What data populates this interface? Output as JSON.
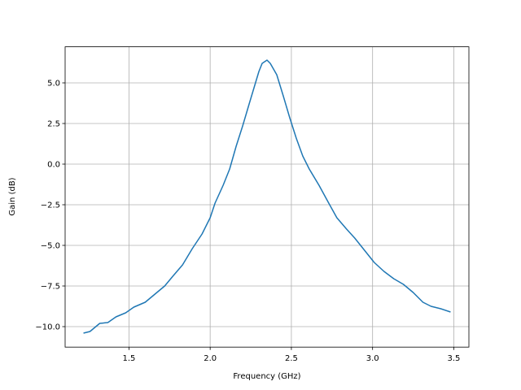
{
  "chart_data": {
    "type": "line",
    "xlabel": "Frequency (GHz)",
    "ylabel": "Gain (dB)",
    "x": [
      1.22,
      1.26,
      1.32,
      1.37,
      1.42,
      1.48,
      1.53,
      1.6,
      1.66,
      1.72,
      1.77,
      1.83,
      1.89,
      1.95,
      2.0,
      2.03,
      2.08,
      2.12,
      2.16,
      2.2,
      2.24,
      2.27,
      2.3,
      2.32,
      2.35,
      2.37,
      2.41,
      2.45,
      2.49,
      2.53,
      2.57,
      2.61,
      2.67,
      2.73,
      2.78,
      2.84,
      2.89,
      2.95,
      3.01,
      3.07,
      3.13,
      3.19,
      3.25,
      3.31,
      3.36,
      3.42,
      3.48
    ],
    "series": [
      {
        "color": "#1f77b4",
        "values": [
          -10.4,
          -10.3,
          -9.8,
          -9.75,
          -9.4,
          -9.15,
          -8.8,
          -8.5,
          -8.0,
          -7.5,
          -6.9,
          -6.2,
          -5.2,
          -4.3,
          -3.3,
          -2.4,
          -1.3,
          -0.3,
          1.1,
          2.35,
          3.7,
          4.7,
          5.7,
          6.2,
          6.4,
          6.2,
          5.5,
          4.2,
          2.85,
          1.6,
          0.5,
          -0.3,
          -1.3,
          -2.4,
          -3.3,
          -4.0,
          -4.55,
          -5.3,
          -6.05,
          -6.6,
          -7.05,
          -7.4,
          -7.9,
          -8.5,
          -8.75,
          -8.9,
          -9.1
        ]
      }
    ],
    "xlim": [
      1.107,
      3.593
    ],
    "ylim": [
      -11.26,
      7.22
    ],
    "xticks": [
      1.5,
      {
        "value": 2,
        "label": "2.0"
      },
      2.5,
      {
        "value": 3,
        "label": "3.0"
      },
      3.5
    ],
    "yticks": [
      {
        "value": -10,
        "label": "−10.0"
      },
      {
        "value": -7.5,
        "label": "−7.5"
      },
      {
        "value": -5,
        "label": "−5.0"
      },
      {
        "value": -2.5,
        "label": "−2.5"
      },
      {
        "value": 0,
        "label": "0.0"
      },
      2.5,
      {
        "value": 5,
        "label": "5.0"
      }
    ],
    "grid": true
  }
}
